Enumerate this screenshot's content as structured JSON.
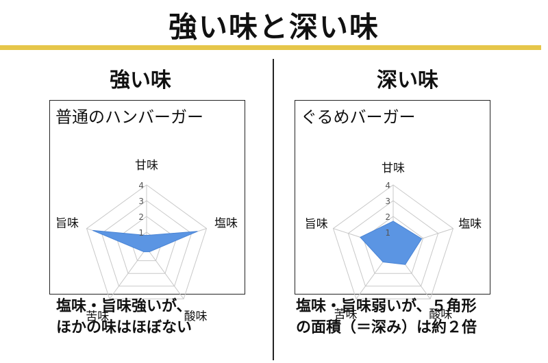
{
  "main_title": "強い味と深い味",
  "panels": [
    {
      "heading": "強い味",
      "chart_title": "普通のハンバーガー",
      "caption": [
        "塩味・旨味強いが、",
        "ほかの味はほぼない"
      ]
    },
    {
      "heading": "深い味",
      "chart_title": "ぐるめバーガー",
      "caption": [
        "塩味・旨味弱いが、５角形",
        "の面積（＝深み）は約２倍"
      ]
    }
  ],
  "colors": {
    "accent_rule": "#e6c64a",
    "fill": "#5b95e3",
    "grid": "#c8c8c8"
  },
  "chart_data": [
    {
      "type": "radar",
      "title": "普通のハンバーガー",
      "axes": [
        "甘味",
        "塩味",
        "酸味",
        "苦味",
        "旨味"
      ],
      "ticks": [
        "1",
        "2",
        "3",
        "4"
      ],
      "rlim": [
        0,
        4
      ],
      "values": [
        0.8,
        3.4,
        0.3,
        0.3,
        3.6
      ]
    },
    {
      "type": "radar",
      "title": "ぐるめバーガー",
      "axes": [
        "甘味",
        "塩味",
        "酸味",
        "苦味",
        "旨味"
      ],
      "ticks": [
        "1",
        "2",
        "3",
        "4"
      ],
      "rlim": [
        0,
        4
      ],
      "values": [
        1.7,
        1.9,
        1.3,
        1.1,
        2.2
      ]
    }
  ]
}
